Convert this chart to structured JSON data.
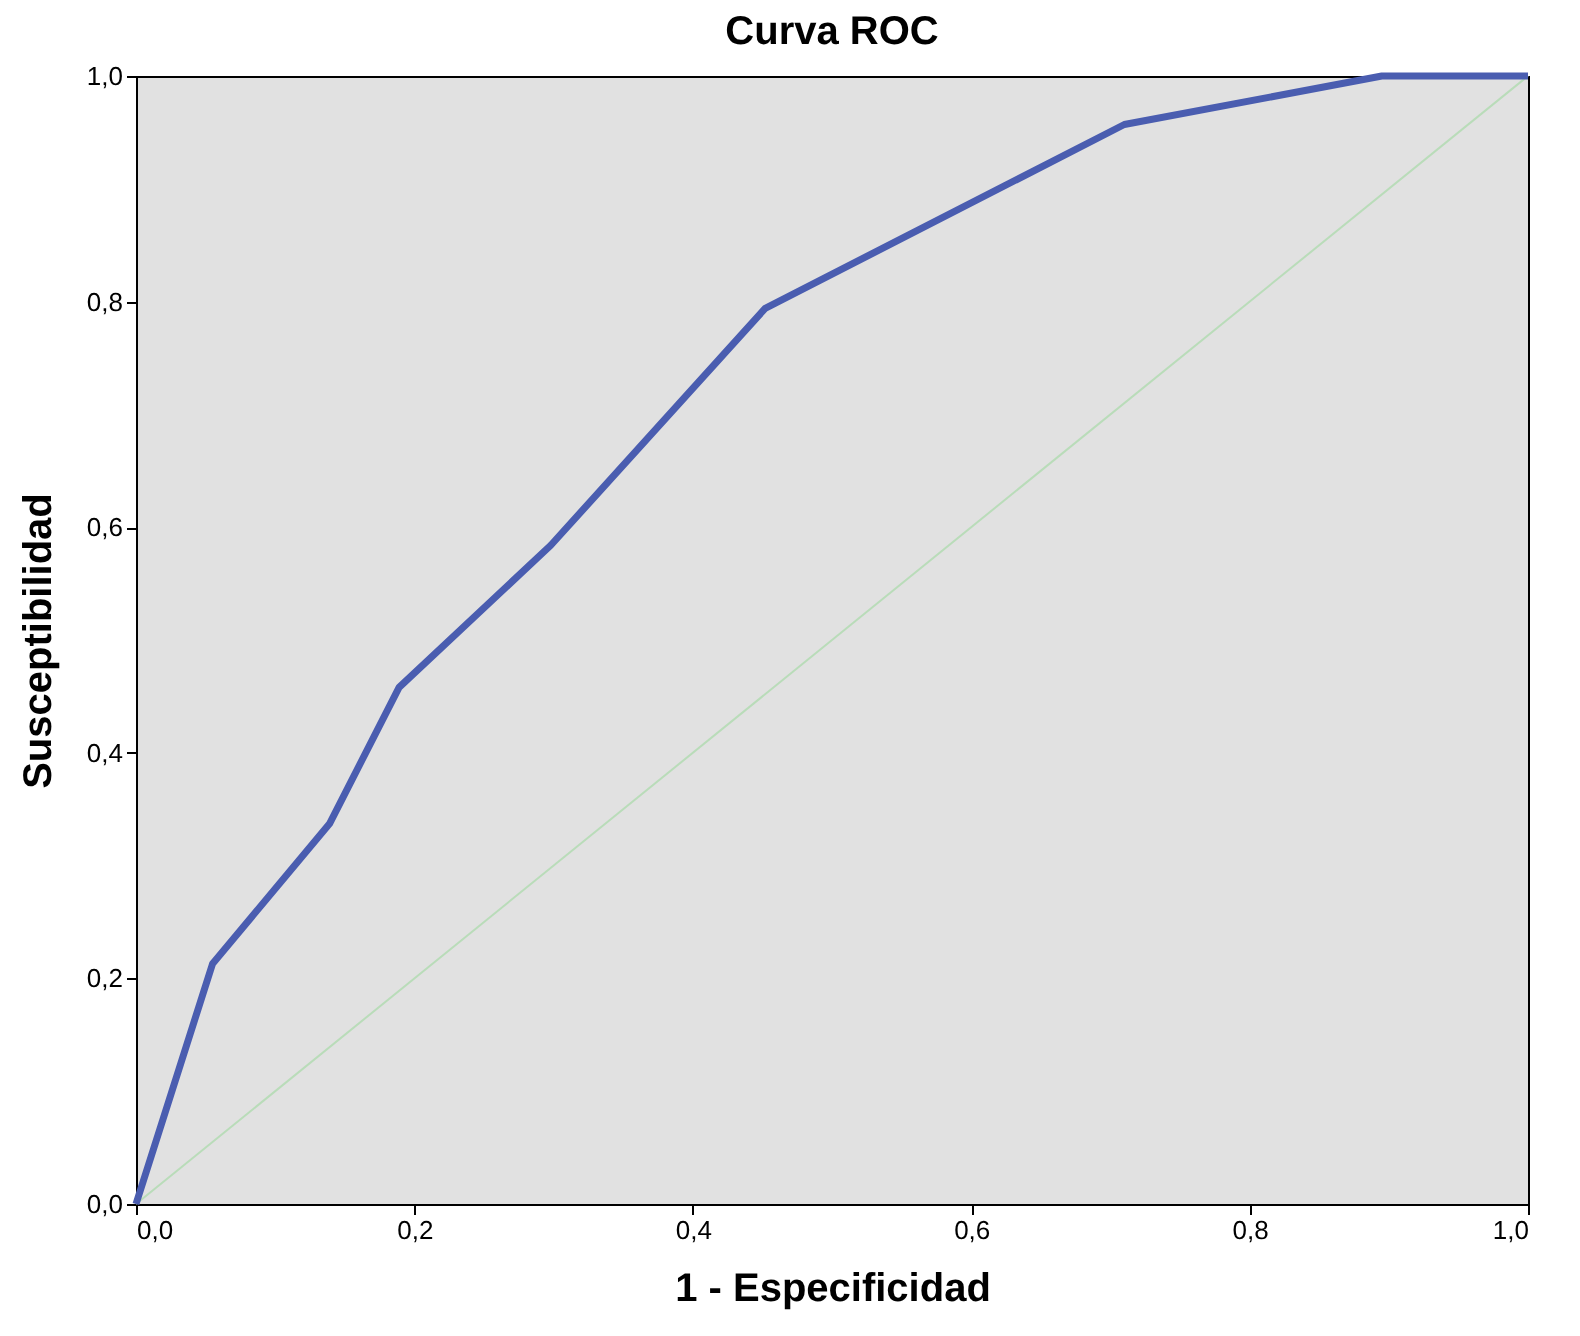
{
  "chart_data": {
    "type": "line",
    "title": "Curva ROC",
    "xlabel": "1 - Especificidad",
    "ylabel": "Susceptibilidad",
    "xlim": [
      0,
      1
    ],
    "ylim": [
      0,
      1
    ],
    "xticks": [
      {
        "value": 0,
        "label": "0,0"
      },
      {
        "value": 0.2,
        "label": "0,2"
      },
      {
        "value": 0.4,
        "label": "0,4"
      },
      {
        "value": 0.6,
        "label": "0,6"
      },
      {
        "value": 0.8,
        "label": "0,8"
      },
      {
        "value": 1,
        "label": "1,0"
      }
    ],
    "yticks": [
      {
        "value": 0,
        "label": "0,0"
      },
      {
        "value": 0.2,
        "label": "0,2"
      },
      {
        "value": 0.4,
        "label": "0,4"
      },
      {
        "value": 0.6,
        "label": "0,6"
      },
      {
        "value": 0.8,
        "label": "0,8"
      },
      {
        "value": 1,
        "label": "1,0"
      }
    ],
    "grid": false,
    "series": [
      {
        "color": "#b9dcb9",
        "x": [
          0,
          1
        ],
        "values": [
          0,
          1
        ]
      },
      {
        "color": "#4a5db0",
        "x": [
          0,
          0.055,
          0.139,
          0.189,
          0.298,
          0.452,
          0.71,
          0.895,
          1
        ],
        "values": [
          0,
          0.213,
          0.337,
          0.458,
          0.584,
          0.794,
          0.957,
          1,
          1
        ]
      }
    ]
  }
}
